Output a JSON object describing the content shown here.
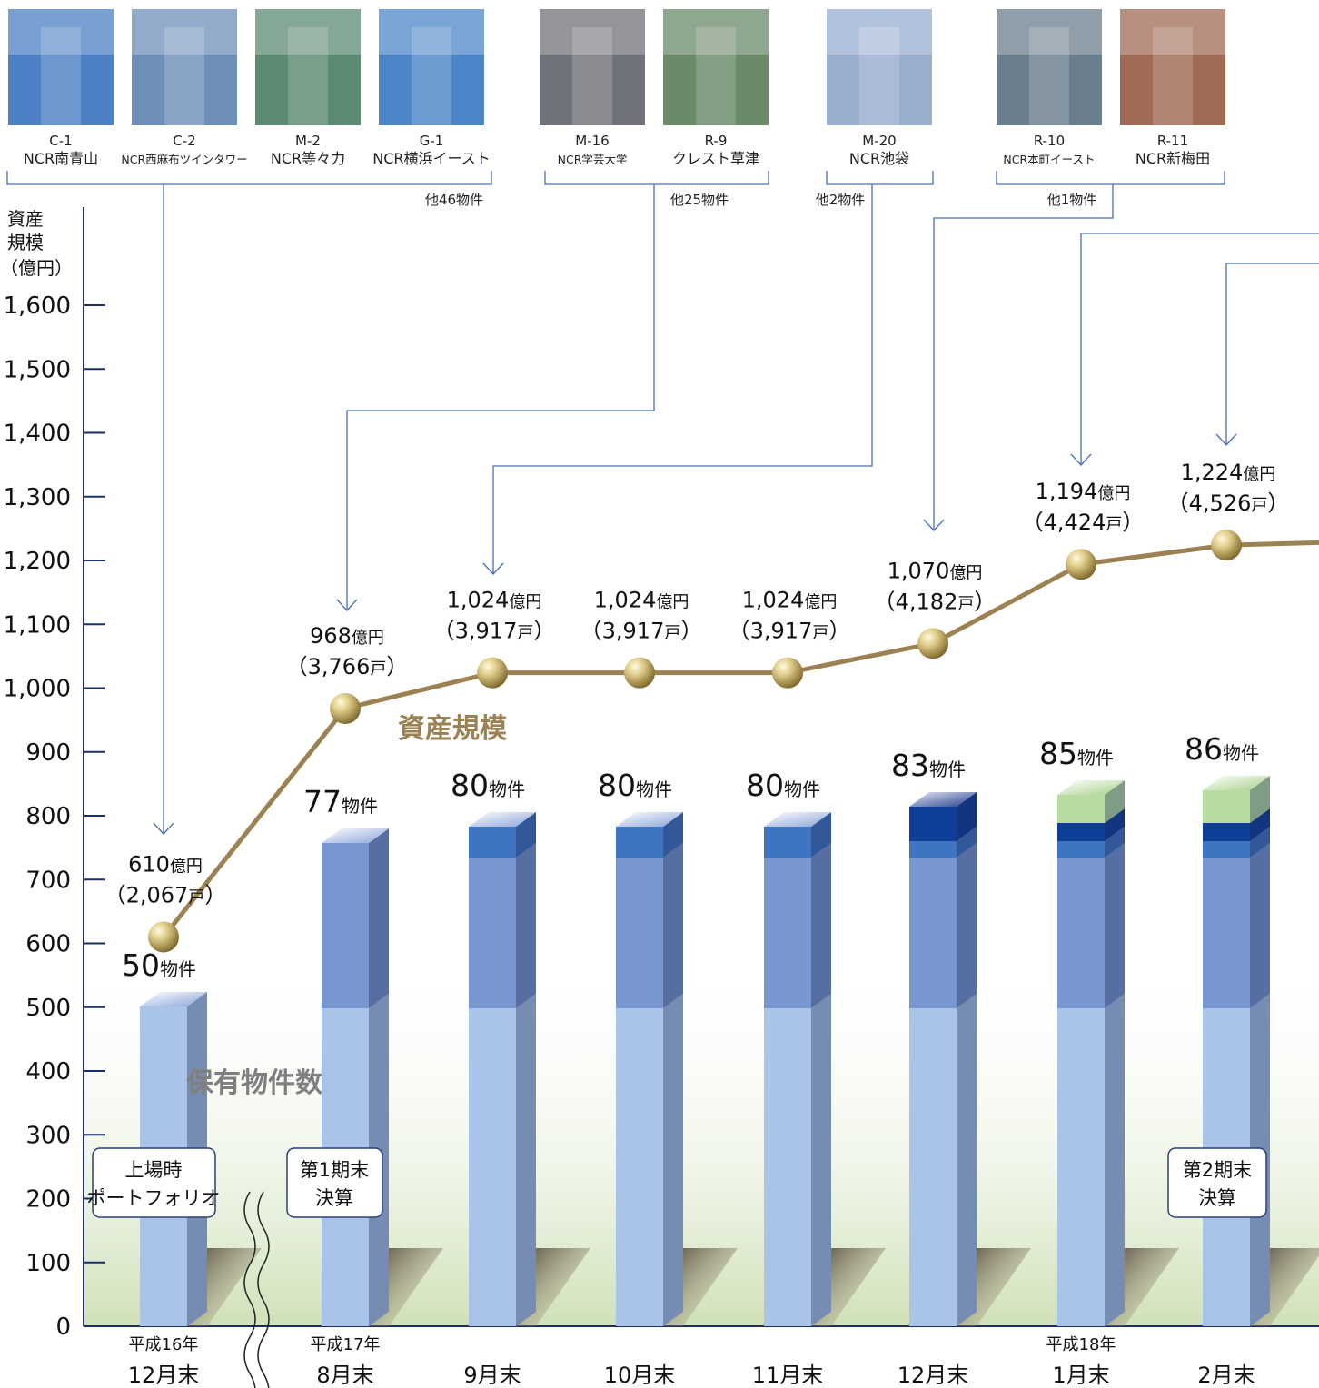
{
  "photos": [
    {
      "code": "C-1",
      "name": "NCR南青山",
      "small": false,
      "fill": "#4d80c4"
    },
    {
      "code": "C-2",
      "name": "NCR西麻布ツインタワー",
      "small": true,
      "fill": "#6e8fb8"
    },
    {
      "code": "M-2",
      "name": "NCR等々力",
      "small": false,
      "fill": "#5c8a72"
    },
    {
      "code": "G-1",
      "name": "NCR横浜イースト",
      "small": false,
      "fill": "#4d86c8"
    },
    {
      "code": "M-16",
      "name": "NCR学芸大学",
      "small": true,
      "fill": "#6f7278"
    },
    {
      "code": "R-9",
      "name": "クレスト草津",
      "small": false,
      "fill": "#6b8a6a"
    },
    {
      "code": "M-20",
      "name": "NCR池袋",
      "small": false,
      "fill": "#9aaed0"
    },
    {
      "code": "R-10",
      "name": "NCR本町イースト",
      "small": true,
      "fill": "#6b7e8e"
    },
    {
      "code": "R-11",
      "name": "NCR新梅田",
      "small": false,
      "fill": "#a06b55"
    }
  ],
  "groups": [
    {
      "others": "他46物件"
    },
    {
      "others": "他25物件"
    },
    {
      "others": "他2物件"
    },
    {
      "others": "他1物件"
    }
  ],
  "y_axis_label": [
    "資産",
    "規模",
    "（億円）"
  ],
  "series_labels": {
    "asset": "資産規模",
    "count": "保有物件数"
  },
  "units": {
    "asset": "億円",
    "count": "物件",
    "households": "戸"
  },
  "callouts": [
    {
      "lines": [
        "上場時",
        "ポートフォリオ"
      ]
    },
    {
      "lines": [
        "第1期末",
        "決算"
      ]
    },
    {
      "lines": [
        "第2期末",
        "決算"
      ]
    }
  ],
  "colors": {
    "line": "#9c8252",
    "bar_base": "#a9c4e8",
    "bar_mid": "#7896cf",
    "bar_s1": "#3f74c0",
    "bar_s2": "#0f3e99",
    "bar_s3": "#b8dca0",
    "axis": "#1a2e6a",
    "leader": "#4a6fb8",
    "series_asset": "#9c8252",
    "series_count": "#7f7f7f"
  },
  "chart_data": {
    "type": "bar",
    "title": "",
    "x_labels": [
      {
        "sub": "平成16年",
        "main": "12月末"
      },
      {
        "sub": "平成17年",
        "main": "8月末"
      },
      {
        "sub": "",
        "main": "9月末"
      },
      {
        "sub": "",
        "main": "10月末"
      },
      {
        "sub": "",
        "main": "11月末"
      },
      {
        "sub": "",
        "main": "12月末"
      },
      {
        "sub": "平成18年",
        "main": "1月末"
      },
      {
        "sub": "",
        "main": "2月末"
      }
    ],
    "ylim": [
      0,
      1600
    ],
    "y_ticks": [
      0,
      100,
      200,
      300,
      400,
      500,
      600,
      700,
      800,
      900,
      1000,
      1100,
      1200,
      1300,
      1400,
      1500,
      1600
    ],
    "y_tick_labels": [
      "0",
      "100",
      "200",
      "300",
      "400",
      "500",
      "600",
      "700",
      "800",
      "900",
      "1,000",
      "1,100",
      "1,200",
      "1,300",
      "1,400",
      "1,500",
      "1,600"
    ],
    "asset_series": {
      "name": "資産規模",
      "values": [
        610,
        968,
        1024,
        1024,
        1024,
        1070,
        1194,
        1224
      ],
      "value_labels": [
        "610",
        "968",
        "1,024",
        "1,024",
        "1,024",
        "1,070",
        "1,194",
        "1,224"
      ],
      "households": [
        "2,067",
        "3,766",
        "3,917",
        "3,917",
        "3,917",
        "4,182",
        "4,424",
        "4,526"
      ]
    },
    "property_counts": {
      "name": "保有物件数",
      "values": [
        50,
        77,
        80,
        80,
        80,
        83,
        85,
        86
      ],
      "labels": [
        "50",
        "77",
        "80",
        "80",
        "80",
        "83",
        "85",
        "86"
      ]
    }
  }
}
